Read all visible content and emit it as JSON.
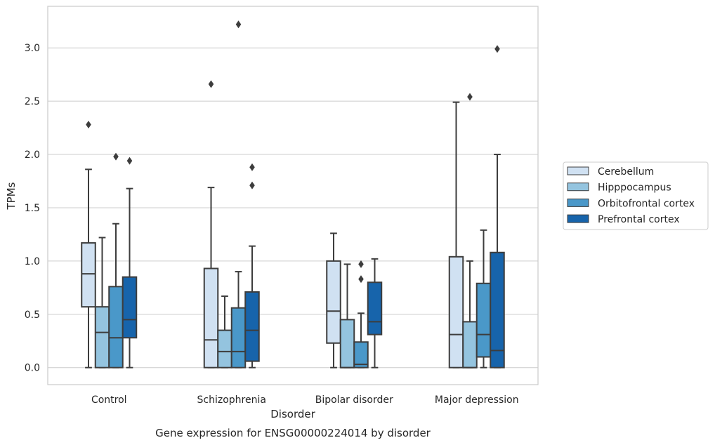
{
  "chart_data": {
    "type": "boxplot",
    "title": "",
    "caption": "Gene expression for ENSG00000224014 by disorder",
    "xlabel": "Disorder",
    "ylabel": "TPMs",
    "ylim": [
      -0.16,
      3.39
    ],
    "yticks": [
      0.0,
      0.5,
      1.0,
      1.5,
      2.0,
      2.5,
      3.0
    ],
    "ytick_labels": [
      "0.0",
      "0.5",
      "1.0",
      "1.5",
      "2.0",
      "2.5",
      "3.0"
    ],
    "grid": "horizontal",
    "legend_position": "right",
    "categories": [
      "Control",
      "Schizophrenia",
      "Bipolar disorder",
      "Major depression"
    ],
    "series": [
      {
        "name": "Cerebellum",
        "color": "#d0e1f2",
        "boxes": [
          {
            "whislo": 0.0,
            "q1": 0.57,
            "med": 0.88,
            "q3": 1.17,
            "whishi": 1.86,
            "fliers": [
              2.28
            ]
          },
          {
            "whislo": 0.0,
            "q1": 0.0,
            "med": 0.26,
            "q3": 0.93,
            "whishi": 1.69,
            "fliers": [
              2.66
            ]
          },
          {
            "whislo": 0.0,
            "q1": 0.23,
            "med": 0.53,
            "q3": 1.0,
            "whishi": 1.26,
            "fliers": []
          },
          {
            "whislo": 0.0,
            "q1": 0.0,
            "med": 0.31,
            "q3": 1.04,
            "whishi": 2.49,
            "fliers": []
          }
        ]
      },
      {
        "name": "Hipppocampus",
        "color": "#94c4df",
        "boxes": [
          {
            "whislo": 0.0,
            "q1": 0.0,
            "med": 0.33,
            "q3": 0.57,
            "whishi": 1.22,
            "fliers": []
          },
          {
            "whislo": 0.0,
            "q1": 0.0,
            "med": 0.15,
            "q3": 0.35,
            "whishi": 0.67,
            "fliers": []
          },
          {
            "whislo": 0.0,
            "q1": 0.0,
            "med": 0.0,
            "q3": 0.45,
            "whishi": 0.97,
            "fliers": []
          },
          {
            "whislo": 0.0,
            "q1": 0.0,
            "med": 0.0,
            "q3": 0.43,
            "whishi": 1.0,
            "fliers": [
              2.54
            ]
          }
        ]
      },
      {
        "name": "Orbitofrontal cortex",
        "color": "#4a98c9",
        "boxes": [
          {
            "whislo": 0.0,
            "q1": 0.0,
            "med": 0.28,
            "q3": 0.76,
            "whishi": 1.35,
            "fliers": [
              1.98
            ]
          },
          {
            "whislo": 0.0,
            "q1": 0.0,
            "med": 0.15,
            "q3": 0.56,
            "whishi": 0.9,
            "fliers": [
              3.22
            ]
          },
          {
            "whislo": 0.0,
            "q1": 0.0,
            "med": 0.03,
            "q3": 0.24,
            "whishi": 0.51,
            "fliers": [
              0.97,
              0.83
            ]
          },
          {
            "whislo": 0.0,
            "q1": 0.1,
            "med": 0.31,
            "q3": 0.79,
            "whishi": 1.29,
            "fliers": []
          }
        ]
      },
      {
        "name": "Prefrontal cortex",
        "color": "#1764ab",
        "boxes": [
          {
            "whislo": 0.0,
            "q1": 0.28,
            "med": 0.45,
            "q3": 0.85,
            "whishi": 1.68,
            "fliers": [
              1.94
            ]
          },
          {
            "whislo": 0.0,
            "q1": 0.06,
            "med": 0.35,
            "q3": 0.71,
            "whishi": 1.14,
            "fliers": [
              1.88,
              1.71
            ]
          },
          {
            "whislo": 0.0,
            "q1": 0.31,
            "med": 0.43,
            "q3": 0.8,
            "whishi": 1.02,
            "fliers": []
          },
          {
            "whislo": 0.0,
            "q1": 0.0,
            "med": 0.16,
            "q3": 1.08,
            "whishi": 2.0,
            "fliers": [
              2.99
            ]
          }
        ]
      }
    ]
  }
}
